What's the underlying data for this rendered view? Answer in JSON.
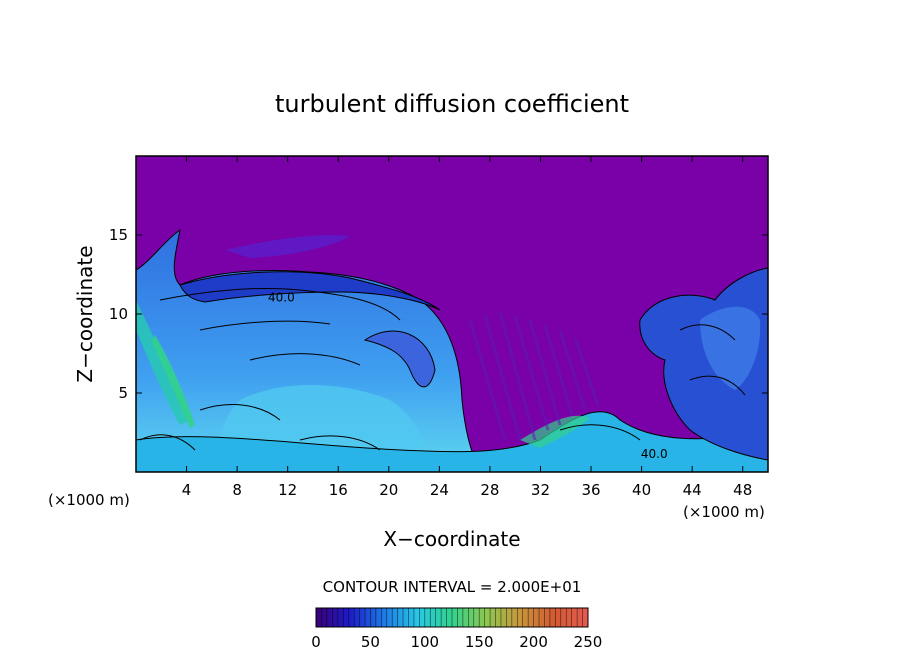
{
  "chart_data": {
    "type": "heatmap",
    "title": "turbulent diffusion coefficient",
    "xlabel": "X−coordinate",
    "ylabel": "Z−coordinate",
    "x_unit_label": "(×1000 m)",
    "y_unit_label": "(×1000 m)",
    "xlim": [
      0,
      50
    ],
    "ylim": [
      0,
      20
    ],
    "x_ticks": [
      4,
      8,
      12,
      16,
      20,
      24,
      28,
      32,
      36,
      40,
      44,
      48
    ],
    "y_ticks": [
      5,
      10,
      15
    ],
    "contour_interval_text": "CONTOUR INTERVAL = 2.000E+01",
    "contour_labels": [
      {
        "text": "40.0",
        "x": 11.5,
        "z": 10.8
      },
      {
        "text": "40.0",
        "x": 41,
        "z": 0.9
      }
    ],
    "colorbar": {
      "min": 0,
      "max": 250,
      "ticks": [
        0,
        50,
        100,
        150,
        200,
        250
      ],
      "colors": [
        "#3a0078",
        "#1c1cc8",
        "#1e7ae6",
        "#28c8e6",
        "#32d28c",
        "#8cc850",
        "#c8963c",
        "#d25a32",
        "#e65a50"
      ]
    },
    "background_value_color": "#7a00a8"
  }
}
